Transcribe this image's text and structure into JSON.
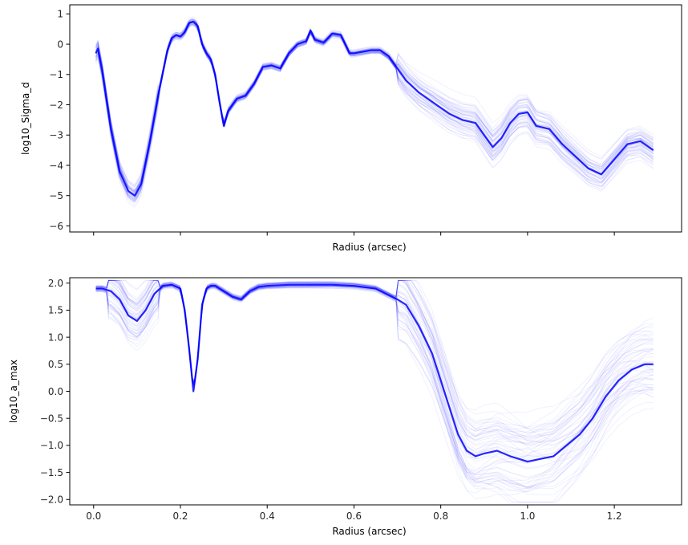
{
  "chart_data": [
    {
      "type": "line",
      "title": "",
      "xlabel": "Radius (arcsec)",
      "ylabel": "log10_Sigma_d",
      "xlim": [
        -0.055,
        1.355
      ],
      "ylim": [
        -6.2,
        1.3
      ],
      "xticks": [
        0.0,
        0.2,
        0.4,
        0.6,
        0.8,
        1.0,
        1.2
      ],
      "xtick_labels_visible": false,
      "yticks": [
        -6,
        -5,
        -4,
        -3,
        -2,
        -1,
        0,
        1
      ],
      "ytick_labels": [
        "−6",
        "−5",
        "−4",
        "−3",
        "−2",
        "−1",
        "0",
        "1"
      ],
      "grid": false,
      "line_color": "#0000ff",
      "rendering": "ensemble of many low-opacity sample curves around the median",
      "median": {
        "x": [
          0.005,
          0.01,
          0.02,
          0.04,
          0.06,
          0.08,
          0.095,
          0.11,
          0.13,
          0.15,
          0.17,
          0.18,
          0.19,
          0.2,
          0.21,
          0.22,
          0.23,
          0.24,
          0.25,
          0.26,
          0.27,
          0.28,
          0.29,
          0.3,
          0.31,
          0.32,
          0.33,
          0.35,
          0.37,
          0.39,
          0.41,
          0.43,
          0.45,
          0.47,
          0.49,
          0.5,
          0.51,
          0.53,
          0.55,
          0.57,
          0.59,
          0.6,
          0.62,
          0.64,
          0.66,
          0.68,
          0.7,
          0.72,
          0.75,
          0.78,
          0.8,
          0.82,
          0.85,
          0.88,
          0.9,
          0.92,
          0.94,
          0.96,
          0.98,
          1.0,
          1.02,
          1.05,
          1.08,
          1.11,
          1.14,
          1.17,
          1.2,
          1.23,
          1.26,
          1.29
        ],
        "y": [
          -0.3,
          -0.15,
          -0.9,
          -2.8,
          -4.2,
          -4.85,
          -5.0,
          -4.6,
          -3.2,
          -1.6,
          -0.2,
          0.2,
          0.3,
          0.25,
          0.4,
          0.7,
          0.75,
          0.6,
          0.0,
          -0.3,
          -0.5,
          -1.0,
          -1.9,
          -2.7,
          -2.2,
          -2.0,
          -1.8,
          -1.7,
          -1.3,
          -0.75,
          -0.7,
          -0.8,
          -0.3,
          0.0,
          0.1,
          0.45,
          0.15,
          0.05,
          0.35,
          0.3,
          -0.3,
          -0.3,
          -0.25,
          -0.2,
          -0.2,
          -0.4,
          -0.8,
          -1.2,
          -1.6,
          -1.9,
          -2.1,
          -2.3,
          -2.5,
          -2.6,
          -3.0,
          -3.4,
          -3.1,
          -2.6,
          -2.3,
          -2.25,
          -2.7,
          -2.8,
          -3.3,
          -3.7,
          -4.1,
          -4.3,
          -3.8,
          -3.3,
          -3.2,
          -3.5
        ]
      }
    },
    {
      "type": "line",
      "title": "",
      "xlabel": "Radius (arcsec)",
      "ylabel": "log10_a_max",
      "xlim": [
        -0.055,
        1.355
      ],
      "ylim": [
        -2.1,
        2.1
      ],
      "xticks": [
        0.0,
        0.2,
        0.4,
        0.6,
        0.8,
        1.0,
        1.2
      ],
      "xtick_labels": [
        "0.0",
        "0.2",
        "0.4",
        "0.6",
        "0.8",
        "1.0",
        "1.2"
      ],
      "yticks": [
        -2.0,
        -1.5,
        -1.0,
        -0.5,
        0.0,
        0.5,
        1.0,
        1.5,
        2.0
      ],
      "ytick_labels": [
        "−2.0",
        "−1.5",
        "−1.0",
        "−0.5",
        "0.0",
        "0.5",
        "1.0",
        "1.5",
        "2.0"
      ],
      "grid": false,
      "line_color": "#0000ff",
      "rendering": "ensemble of many low-opacity sample curves around the median",
      "median": {
        "x": [
          0.005,
          0.02,
          0.04,
          0.06,
          0.08,
          0.1,
          0.12,
          0.14,
          0.16,
          0.18,
          0.2,
          0.21,
          0.22,
          0.23,
          0.24,
          0.25,
          0.26,
          0.27,
          0.28,
          0.29,
          0.3,
          0.32,
          0.34,
          0.36,
          0.38,
          0.4,
          0.45,
          0.5,
          0.55,
          0.6,
          0.65,
          0.7,
          0.72,
          0.75,
          0.78,
          0.8,
          0.82,
          0.84,
          0.86,
          0.88,
          0.9,
          0.93,
          0.96,
          1.0,
          1.03,
          1.06,
          1.09,
          1.12,
          1.15,
          1.18,
          1.21,
          1.24,
          1.27,
          1.29
        ],
        "y": [
          1.9,
          1.9,
          1.85,
          1.7,
          1.4,
          1.3,
          1.5,
          1.8,
          1.95,
          1.97,
          1.9,
          1.5,
          0.8,
          0.0,
          0.6,
          1.6,
          1.9,
          1.95,
          1.95,
          1.9,
          1.85,
          1.75,
          1.7,
          1.85,
          1.93,
          1.95,
          1.97,
          1.97,
          1.97,
          1.95,
          1.9,
          1.7,
          1.6,
          1.2,
          0.7,
          0.2,
          -0.3,
          -0.8,
          -1.1,
          -1.2,
          -1.15,
          -1.1,
          -1.2,
          -1.3,
          -1.25,
          -1.2,
          -1.0,
          -0.8,
          -0.5,
          -0.1,
          0.2,
          0.4,
          0.5,
          0.5
        ]
      }
    }
  ]
}
